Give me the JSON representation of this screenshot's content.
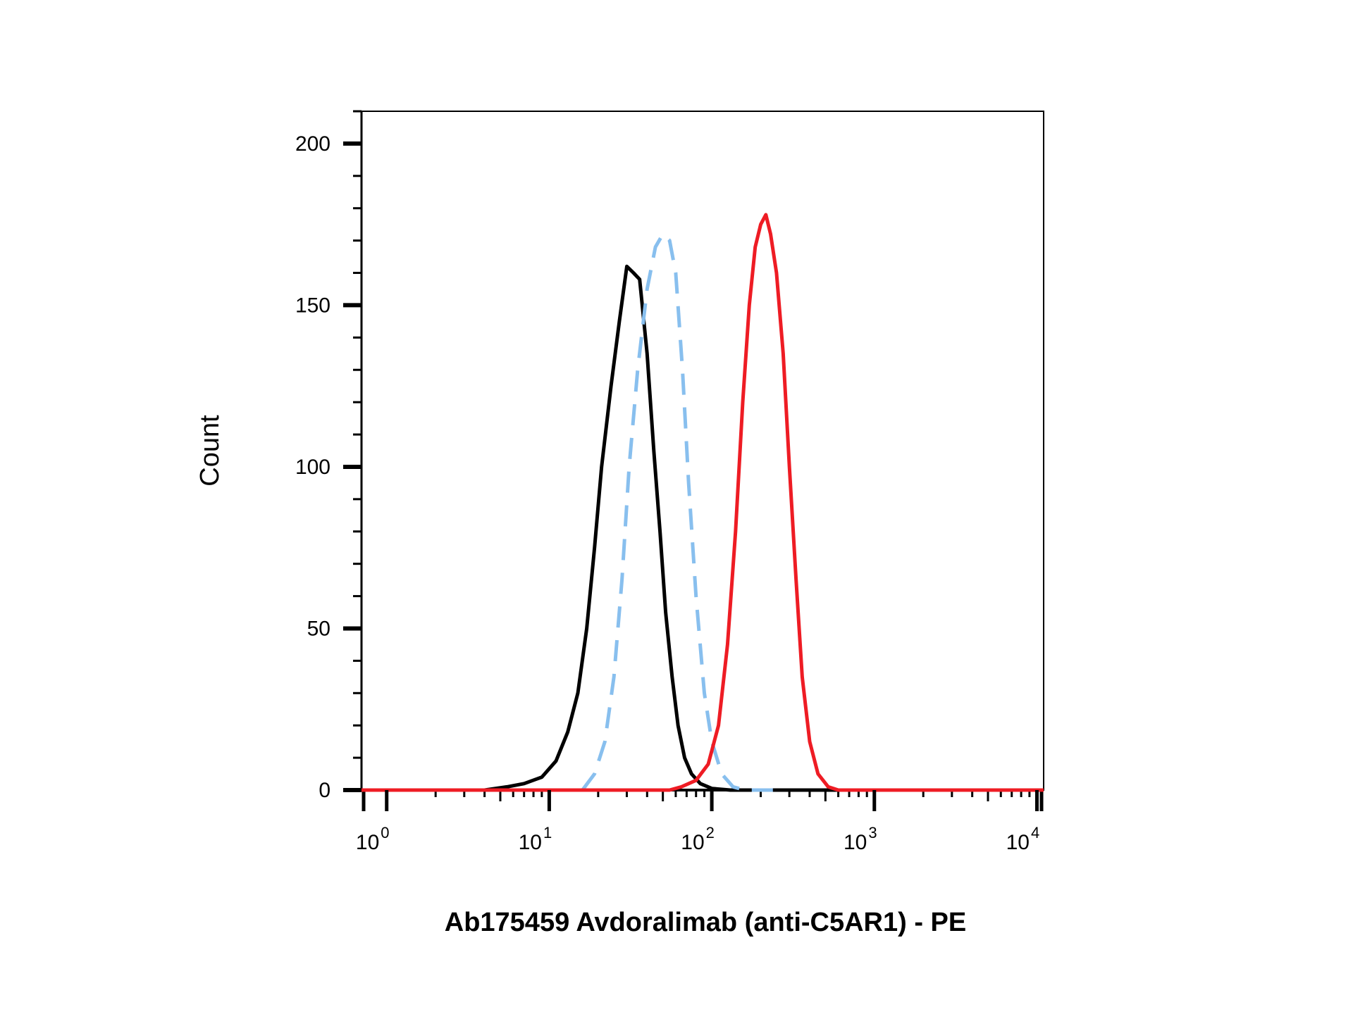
{
  "chart_data": {
    "type": "line",
    "title": "",
    "xlabel": "Ab175459 Avdoralimab (anti-C5AR1) - PE",
    "ylabel": "Count",
    "x_scale": "log",
    "xlim": [
      0.7,
      11000
    ],
    "ylim": [
      0,
      210
    ],
    "grid": false,
    "legend": "none",
    "x_ticks": [
      {
        "value": 1,
        "base": "10",
        "exp": "0"
      },
      {
        "value": 10,
        "base": "10",
        "exp": "1"
      },
      {
        "value": 100,
        "base": "10",
        "exp": "2"
      },
      {
        "value": 1000,
        "base": "10",
        "exp": "3"
      },
      {
        "value": 10000,
        "base": "10",
        "exp": "4"
      }
    ],
    "y_ticks": [
      {
        "value": 0,
        "label": "0"
      },
      {
        "value": 50,
        "label": "50"
      },
      {
        "value": 100,
        "label": "100"
      },
      {
        "value": 150,
        "label": "150"
      },
      {
        "value": 200,
        "label": "200"
      }
    ],
    "series": [
      {
        "color": "#000000",
        "style": "solid",
        "points": [
          [
            0.7,
            0
          ],
          [
            4,
            0
          ],
          [
            5.5,
            1
          ],
          [
            7,
            2
          ],
          [
            9,
            4
          ],
          [
            11,
            9
          ],
          [
            13,
            18
          ],
          [
            15,
            30
          ],
          [
            17,
            50
          ],
          [
            19,
            75
          ],
          [
            21,
            100
          ],
          [
            24,
            125
          ],
          [
            27,
            145
          ],
          [
            30,
            162
          ],
          [
            33,
            160
          ],
          [
            36,
            158
          ],
          [
            40,
            135
          ],
          [
            44,
            105
          ],
          [
            48,
            80
          ],
          [
            52,
            55
          ],
          [
            57,
            35
          ],
          [
            62,
            20
          ],
          [
            68,
            10
          ],
          [
            75,
            5
          ],
          [
            85,
            2
          ],
          [
            100,
            0.5
          ],
          [
            130,
            0
          ],
          [
            11000,
            0
          ]
        ]
      },
      {
        "color": "#88bfee",
        "style": "dashed",
        "points": [
          [
            16,
            0
          ],
          [
            19,
            5
          ],
          [
            22,
            15
          ],
          [
            25,
            35
          ],
          [
            28,
            65
          ],
          [
            31,
            100
          ],
          [
            35,
            130
          ],
          [
            40,
            155
          ],
          [
            45,
            168
          ],
          [
            50,
            172
          ],
          [
            55,
            170
          ],
          [
            60,
            160
          ],
          [
            66,
            130
          ],
          [
            72,
            95
          ],
          [
            80,
            60
          ],
          [
            90,
            30
          ],
          [
            100,
            15
          ],
          [
            115,
            5
          ],
          [
            135,
            1
          ],
          [
            160,
            0
          ],
          [
            250,
            0
          ]
        ]
      },
      {
        "color": "#ee1c24",
        "style": "solid",
        "points": [
          [
            0.7,
            0
          ],
          [
            55,
            0
          ],
          [
            65,
            1
          ],
          [
            80,
            3
          ],
          [
            95,
            8
          ],
          [
            110,
            20
          ],
          [
            125,
            45
          ],
          [
            140,
            80
          ],
          [
            155,
            120
          ],
          [
            170,
            150
          ],
          [
            185,
            168
          ],
          [
            200,
            175
          ],
          [
            215,
            178
          ],
          [
            230,
            172
          ],
          [
            250,
            160
          ],
          [
            275,
            135
          ],
          [
            300,
            100
          ],
          [
            330,
            65
          ],
          [
            360,
            35
          ],
          [
            400,
            15
          ],
          [
            450,
            5
          ],
          [
            520,
            1
          ],
          [
            600,
            0
          ],
          [
            11000,
            0
          ]
        ]
      }
    ]
  }
}
